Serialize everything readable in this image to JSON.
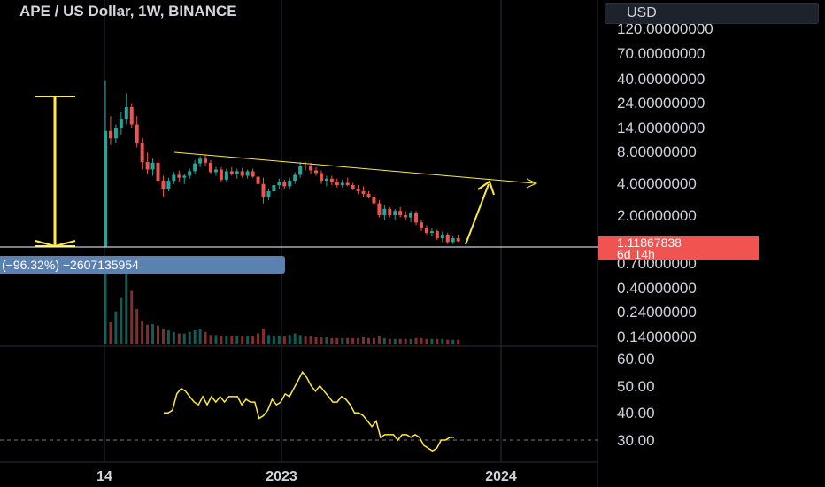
{
  "header": {
    "symbol_title": "APE / US Dollar, 1W, BINANCE",
    "currency": "USD"
  },
  "price_badge": {
    "price": "1.11867838",
    "countdown": "6d 14h",
    "color": "#f05350"
  },
  "measure_badge": {
    "text": "(−96.32%)  −2607135954",
    "color": "#5b81b0"
  },
  "colors": {
    "up": "#26a69a",
    "down": "#ef5350",
    "drawing": "#ffeb3b",
    "grid": "#2a2e39",
    "text": "#d1d4dc"
  },
  "chart_data": [
    {
      "type": "candlestick",
      "title": "APE / US Dollar, 1W, BINANCE",
      "y_scale": "log",
      "price_axis_labels": [
        "120.00000000",
        "70.00000000",
        "40.00000000",
        "24.00000000",
        "14.00000000",
        "8.00000000",
        "4.00000000",
        "2.00000000",
        "0.70000000",
        "0.40000000",
        "0.24000000",
        "0.14000000"
      ],
      "time_axis_labels": [
        "14",
        "2023",
        "2024"
      ],
      "last_price": 1.11867838,
      "ohlc": [
        [
          1.0,
          40.0,
          1.0,
          13.0
        ],
        [
          13.0,
          18.0,
          9.5,
          11.0
        ],
        [
          11.0,
          15.0,
          10.0,
          14.0
        ],
        [
          14.0,
          20.0,
          12.0,
          17.0
        ],
        [
          17.0,
          30.0,
          15.0,
          22.0
        ],
        [
          22.0,
          24.0,
          14.0,
          15.0
        ],
        [
          15.0,
          18.0,
          9.0,
          10.0
        ],
        [
          10.0,
          11.0,
          5.5,
          6.5
        ],
        [
          6.5,
          8.0,
          5.0,
          5.5
        ],
        [
          5.5,
          7.0,
          4.8,
          6.4
        ],
        [
          6.4,
          6.8,
          4.0,
          4.3
        ],
        [
          4.3,
          4.8,
          3.0,
          3.6
        ],
        [
          3.6,
          4.6,
          3.4,
          4.3
        ],
        [
          4.3,
          5.2,
          4.0,
          4.9
        ],
        [
          4.9,
          5.4,
          4.2,
          4.6
        ],
        [
          4.6,
          5.0,
          4.0,
          4.8
        ],
        [
          4.8,
          5.6,
          4.5,
          5.3
        ],
        [
          5.3,
          6.8,
          5.0,
          6.3
        ],
        [
          6.3,
          7.4,
          5.8,
          7.0
        ],
        [
          7.0,
          7.6,
          6.0,
          6.4
        ],
        [
          6.4,
          6.8,
          5.0,
          5.2
        ],
        [
          5.2,
          5.8,
          4.8,
          5.5
        ],
        [
          5.5,
          5.8,
          4.2,
          4.4
        ],
        [
          4.4,
          5.6,
          4.2,
          5.3
        ],
        [
          5.3,
          5.8,
          4.8,
          5.0
        ],
        [
          5.0,
          5.6,
          4.5,
          5.3
        ],
        [
          5.3,
          5.7,
          4.6,
          4.8
        ],
        [
          4.8,
          5.5,
          4.5,
          5.3
        ],
        [
          5.3,
          5.6,
          4.6,
          4.7
        ],
        [
          4.7,
          5.2,
          3.8,
          4.0
        ],
        [
          4.0,
          4.6,
          2.6,
          3.0
        ],
        [
          3.0,
          3.6,
          2.8,
          3.4
        ],
        [
          3.4,
          4.2,
          3.2,
          3.9
        ],
        [
          3.9,
          4.5,
          3.6,
          4.2
        ],
        [
          4.2,
          4.4,
          3.6,
          3.8
        ],
        [
          3.8,
          4.6,
          3.6,
          4.3
        ],
        [
          4.3,
          5.2,
          4.0,
          4.9
        ],
        [
          4.9,
          6.5,
          4.6,
          6.0
        ],
        [
          6.0,
          6.5,
          5.4,
          5.9
        ],
        [
          5.9,
          6.4,
          5.0,
          5.4
        ],
        [
          5.4,
          5.8,
          4.8,
          5.1
        ],
        [
          5.1,
          5.4,
          4.0,
          4.3
        ],
        [
          4.3,
          4.8,
          3.8,
          4.5
        ],
        [
          4.5,
          4.8,
          3.9,
          4.2
        ],
        [
          4.2,
          4.5,
          3.7,
          3.9
        ],
        [
          3.9,
          4.4,
          3.7,
          4.1
        ],
        [
          4.1,
          4.6,
          3.8,
          3.9
        ],
        [
          3.9,
          4.1,
          3.5,
          3.6
        ],
        [
          3.6,
          3.9,
          3.2,
          3.4
        ],
        [
          3.4,
          3.8,
          3.0,
          3.2
        ],
        [
          3.2,
          3.4,
          2.9,
          3.0
        ],
        [
          3.0,
          3.2,
          2.5,
          2.6
        ],
        [
          2.6,
          2.8,
          1.9,
          2.0
        ],
        [
          2.0,
          2.5,
          1.8,
          2.3
        ],
        [
          2.3,
          2.4,
          1.9,
          2.0
        ],
        [
          2.0,
          2.3,
          1.8,
          2.2
        ],
        [
          2.2,
          2.4,
          1.9,
          2.0
        ],
        [
          2.0,
          2.2,
          1.8,
          1.9
        ],
        [
          1.9,
          2.2,
          1.7,
          2.1
        ],
        [
          2.1,
          2.2,
          1.6,
          1.7
        ],
        [
          1.7,
          1.8,
          1.4,
          1.5
        ],
        [
          1.5,
          1.6,
          1.3,
          1.35
        ],
        [
          1.35,
          1.5,
          1.25,
          1.4
        ],
        [
          1.4,
          1.45,
          1.15,
          1.2
        ],
        [
          1.2,
          1.4,
          1.1,
          1.3
        ],
        [
          1.3,
          1.35,
          1.05,
          1.1
        ],
        [
          1.1,
          1.25,
          1.05,
          1.2
        ],
        [
          1.2,
          1.3,
          1.1,
          1.12
        ]
      ]
    },
    {
      "type": "bar",
      "title": "Volume",
      "values": [
        95,
        28,
        42,
        60,
        100,
        68,
        45,
        30,
        25,
        26,
        24,
        20,
        18,
        16,
        14,
        14,
        16,
        18,
        20,
        16,
        12,
        12,
        11,
        11,
        10,
        10,
        10,
        10,
        10,
        14,
        20,
        12,
        10,
        11,
        10,
        12,
        14,
        12,
        10,
        10,
        9,
        9,
        9,
        8,
        8,
        8,
        8,
        8,
        8,
        9,
        8,
        8,
        10,
        8,
        7,
        7,
        7,
        7,
        7,
        8,
        8,
        7,
        7,
        7,
        7,
        6,
        6,
        6
      ],
      "ylim": [
        0,
        100
      ]
    },
    {
      "type": "line",
      "title": "Oscillator",
      "y_axis_labels": [
        "60.00",
        "50.00",
        "40.00",
        "30.00"
      ],
      "ylim": [
        26,
        60
      ],
      "reference_level": 30,
      "values": [
        40,
        40,
        41,
        47,
        49,
        48,
        46,
        44,
        43,
        46,
        43,
        46,
        44,
        46,
        44,
        46,
        46,
        46,
        43,
        45,
        44,
        44,
        38,
        39,
        41,
        45,
        43,
        44,
        47,
        46,
        49,
        52,
        55,
        53,
        50,
        48,
        50,
        48,
        46,
        44,
        44,
        46,
        45,
        43,
        40,
        40,
        39,
        37,
        35,
        37,
        31,
        32,
        32,
        32,
        30,
        32,
        32,
        31,
        32,
        31,
        28,
        27,
        26,
        27,
        30,
        30,
        31,
        31
      ]
    }
  ]
}
